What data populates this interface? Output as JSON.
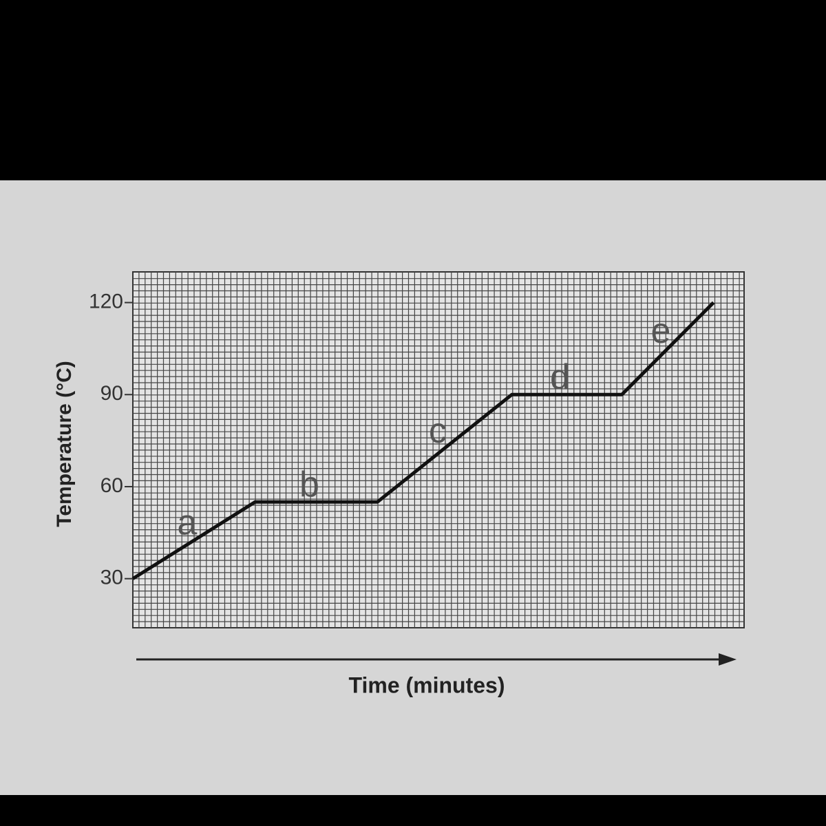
{
  "chart_data": {
    "type": "line",
    "x_label": "Time (minutes)",
    "y_label": "Temperature (°C)",
    "x": [
      0,
      20,
      40,
      62,
      80,
      95
    ],
    "series": [
      {
        "color": "#111111",
        "values": [
          30,
          55,
          55,
          90,
          90,
          120
        ]
      }
    ],
    "annotations": [
      "a",
      "b",
      "c",
      "d",
      "e"
    ],
    "xlim": [
      0,
      100
    ],
    "ylim": [
      14,
      130
    ],
    "yticks": [
      30,
      60,
      90,
      120
    ],
    "grid": true
  }
}
